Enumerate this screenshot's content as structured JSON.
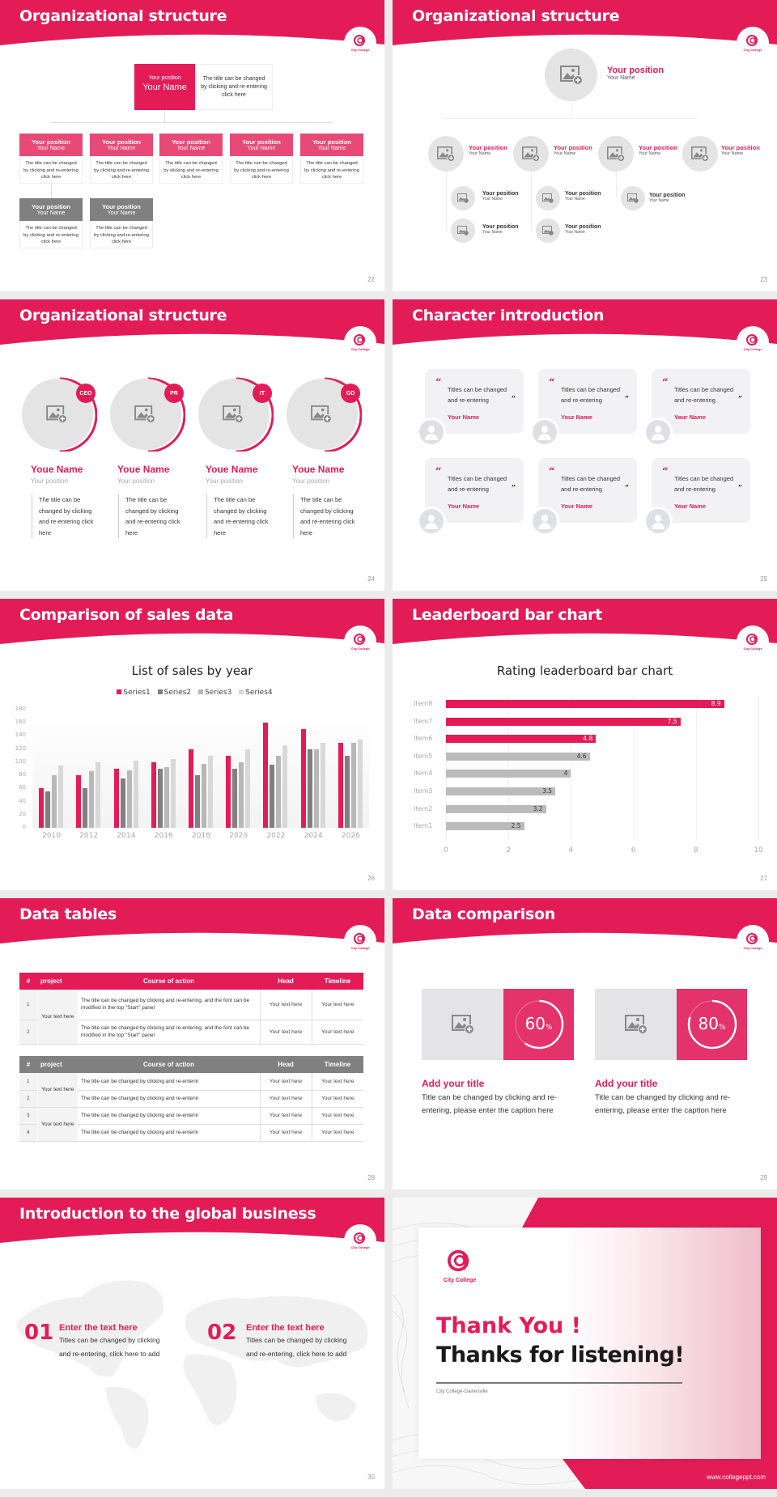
{
  "theme": {
    "accent": "#e31c58",
    "dark_grey": "#808080",
    "light_grey": "#e4e4e4",
    "background": "#ececec"
  },
  "brand": {
    "logo_text": "City College"
  },
  "slides": [
    {
      "page": "22",
      "title": "Organizational structure",
      "top": {
        "position": "Your position",
        "name": "Your Name",
        "description": "The title can be changed by clicking and re-entering click here"
      },
      "cards": [
        {
          "position": "Your position",
          "name": "Your Name",
          "text": "The title can be changed by clicking and re-entering click here",
          "style": "pink"
        },
        {
          "position": "Your position",
          "name": "Your Name",
          "text": "The title can be changed by clicking and re-entering click here",
          "style": "pink"
        },
        {
          "position": "Your position",
          "name": "Your Name",
          "text": "The title can be changed by clicking and re-entering click here",
          "style": "pink"
        },
        {
          "position": "Your position",
          "name": "Your Name",
          "text": "The title can be changed by clicking and re-entering click here",
          "style": "pink"
        },
        {
          "position": "Your position",
          "name": "Your Name",
          "text": "The title can be changed by clicking and re-entering click here",
          "style": "pink"
        },
        {
          "position": "Your position",
          "name": "Your Name",
          "text": "The title can be changed by clicking and re-entering click here",
          "style": "grey"
        },
        {
          "position": "Your position",
          "name": "Your Name",
          "text": "The title can be changed by clicking and re-entering click here",
          "style": "grey"
        }
      ]
    },
    {
      "page": "23",
      "title": "Organizational structure",
      "top": {
        "position": "Your position",
        "name": "Your Name"
      },
      "level2": [
        {
          "position": "Your position",
          "name": "Your Name"
        },
        {
          "position": "Your position",
          "name": "Your Name"
        },
        {
          "position": "Your position",
          "name": "Your Name"
        },
        {
          "position": "Your position",
          "name": "Your Name"
        }
      ],
      "level3": [
        {
          "position": "Your position",
          "name": "Your Name"
        },
        {
          "position": "Your position",
          "name": "Your Name"
        },
        {
          "position": "Your position",
          "name": "Your Name"
        },
        {
          "position": "Your position",
          "name": "Your Name"
        },
        {
          "position": "Your position",
          "name": "Your Name"
        }
      ]
    },
    {
      "page": "24",
      "title": "Organizational structure",
      "members": [
        {
          "badge": "CEO",
          "name": "Youe Name",
          "position": "Your position",
          "text": "The title can be changed by clicking and re-entering click here"
        },
        {
          "badge": "PR",
          "name": "Youe Name",
          "position": "Your position",
          "text": "The title can be changed by clicking and re-entering click here"
        },
        {
          "badge": "IT",
          "name": "Youe Name",
          "position": "Your position",
          "text": "The title can be changed by clicking and re-entering click here"
        },
        {
          "badge": "GD",
          "name": "Youe Name",
          "position": "Your position",
          "text": "The title can be changed by clicking and re-entering click here"
        }
      ]
    },
    {
      "page": "25",
      "title": "Character introduction",
      "quotes": [
        {
          "line1": "Titles can be changed",
          "line2": "and re-entering",
          "name": "Your Name"
        },
        {
          "line1": "Titles can be changed",
          "line2": "and re-entering",
          "name": "Your Name"
        },
        {
          "line1": "Titles can be changed",
          "line2": "and re-entering",
          "name": "Your Name"
        },
        {
          "line1": "Titles can be changed",
          "line2": "and re-entering",
          "name": "Your Name"
        },
        {
          "line1": "Titles can be changed",
          "line2": "and re-entering",
          "name": "Your Name"
        },
        {
          "line1": "Titles can be changed",
          "line2": "and re-entering",
          "name": "Your Name"
        }
      ],
      "quote_open": "“",
      "quote_close": "”"
    },
    {
      "page": "26",
      "title": "Comparison of sales data"
    },
    {
      "page": "27",
      "title": "Leaderboard bar chart"
    },
    {
      "page": "28",
      "title": "Data tables",
      "table1": {
        "headers": [
          "#",
          "project",
          "Course of action",
          "Head",
          "Timeline"
        ],
        "project": "Your text here",
        "rows": [
          {
            "num": "1",
            "course": "The title can be changed by clicking and re-entering, and the font can be modified in the top \"Start\" panel",
            "head": "Your text here",
            "timeline": "Your text here"
          },
          {
            "num": "2",
            "course": "The title can be changed by clicking and re-entering, and the font can be modified in the top \"Start\" panel",
            "head": "Your text here",
            "timeline": "Your text here"
          }
        ]
      },
      "table2": {
        "headers": [
          "#",
          "project",
          "Course of action",
          "Head",
          "Timeline"
        ],
        "projects": [
          "Your text here",
          "Your text here"
        ],
        "rows": [
          {
            "num": "1",
            "course": "The title can be changed by clicking and re-enterin",
            "head": "Your text here",
            "timeline": "Your text here"
          },
          {
            "num": "2",
            "course": "The title can be changed by clicking and re-enterin",
            "head": "Your text here",
            "timeline": "Your text here"
          },
          {
            "num": "3",
            "course": "The title can be changed by clicking and re-enterin",
            "head": "Your text here",
            "timeline": "Your text here"
          },
          {
            "num": "4",
            "course": "The title can be changed by clicking and re-enterin",
            "head": "Your text here",
            "timeline": "Your text here"
          }
        ]
      }
    },
    {
      "page": "29",
      "title": "Data comparison",
      "items": [
        {
          "percent": 60,
          "percent_label": "60",
          "percent_sign": "%",
          "title": "Add your title",
          "text": "Title can be changed by clicking and re-entering, please enter the caption here"
        },
        {
          "percent": 80,
          "percent_label": "80",
          "percent_sign": "%",
          "title": "Add your title",
          "text": "Title can be changed by clicking and re-entering, please enter the caption here"
        }
      ]
    },
    {
      "page": "30",
      "title": "Introduction to the global business",
      "items": [
        {
          "num": "01",
          "title": "Enter the text here",
          "text": "Titles can be changed by clicking and re-entering, click here to add"
        },
        {
          "num": "02",
          "title": "Enter the text here",
          "text": "Titles can be changed by clicking and re-entering, click here to add"
        }
      ]
    },
    {
      "thank_you": "Thank You !",
      "thanks_listening": "Thanks for listening!",
      "subtitle": "City College-Gainesville",
      "url": "www.collegeppt.com",
      "logo_text": "City College"
    }
  ],
  "chart_data": [
    {
      "type": "bar",
      "title": "List of sales by year",
      "categories": [
        "2010",
        "2012",
        "2014",
        "2016",
        "2018",
        "2020",
        "2022",
        "2024",
        "2026"
      ],
      "series": [
        {
          "name": "Series1",
          "color": "#e31c58",
          "values": [
            60,
            80,
            90,
            100,
            120,
            110,
            160,
            150,
            130
          ]
        },
        {
          "name": "Series2",
          "color": "#808080",
          "values": [
            55,
            60,
            75,
            90,
            80,
            90,
            96,
            120,
            110
          ]
        },
        {
          "name": "Series3",
          "color": "#b8b8b8",
          "values": [
            80,
            86,
            88,
            92,
            98,
            100,
            110,
            120,
            130
          ]
        },
        {
          "name": "Series4",
          "color": "#d8d8d8",
          "values": [
            95,
            100,
            102,
            105,
            110,
            120,
            126,
            130,
            135
          ]
        }
      ],
      "yticks": [
        "0",
        "20",
        "40",
        "60",
        "80",
        "100",
        "120",
        "140",
        "160",
        "180"
      ],
      "ylim": [
        0,
        180
      ],
      "xlabel": "",
      "ylabel": "",
      "legend_position": "top",
      "grid": true
    },
    {
      "type": "bar",
      "orientation": "horizontal",
      "title": "Rating leaderboard bar chart",
      "categories": [
        "Item8",
        "Item7",
        "Item6",
        "Item5",
        "Item4",
        "Item3",
        "Item2",
        "Item1"
      ],
      "values": [
        8.9,
        7.5,
        4.8,
        4.6,
        4,
        3.5,
        3.2,
        2.5
      ],
      "value_labels": [
        "8.9",
        "7.5",
        "4.8",
        "4.6",
        "4",
        "3.5",
        "3.2",
        "2.5"
      ],
      "colors": [
        "#e31c58",
        "#e31c58",
        "#e31c58",
        "#bbbbbb",
        "#bbbbbb",
        "#bbbbbb",
        "#bbbbbb",
        "#bbbbbb"
      ],
      "xticks": [
        "0",
        "2",
        "4",
        "6",
        "8",
        "10"
      ],
      "xlim": [
        0,
        10
      ],
      "xlabel": "",
      "ylabel": "",
      "grid": true
    }
  ]
}
